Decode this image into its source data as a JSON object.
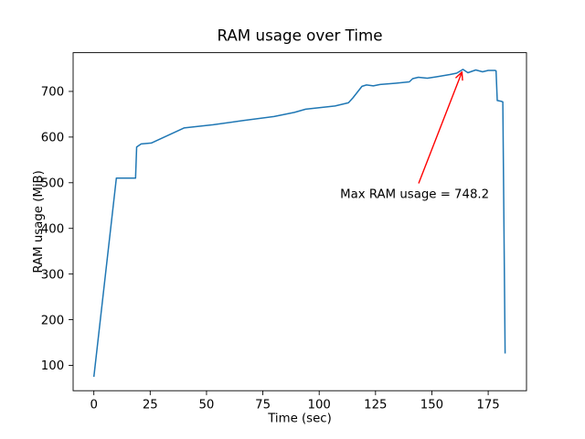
{
  "chart_data": {
    "type": "line",
    "title": "RAM usage over Time",
    "xlabel": "Time (sec)",
    "ylabel": "RAM usage (MiB)",
    "xlim": [
      -9.2,
      192.0
    ],
    "ylim": [
      44.5,
      784.8
    ],
    "xticks": [
      0,
      25,
      50,
      75,
      100,
      125,
      150,
      175
    ],
    "yticks": [
      100,
      200,
      300,
      400,
      500,
      600,
      700
    ],
    "grid": false,
    "legend": null,
    "line_color": "#1f77b4",
    "annotation_color": "#ff0000",
    "axis_color": "#000000",
    "series": [
      {
        "name": "RAM usage",
        "x": [
          0,
          10,
          18.5,
          19,
          21,
          25.5,
          40,
          53,
          66,
          80,
          89,
          94,
          107,
          113,
          115,
          119,
          121,
          124,
          127,
          134,
          140,
          141.5,
          144,
          148,
          152,
          158,
          161,
          163.8,
          166,
          169.5,
          172.5,
          175,
          178,
          178.5,
          179,
          181,
          181.5,
          182.5
        ],
        "y": [
          75,
          510,
          510,
          578,
          585,
          587,
          620,
          627,
          636,
          645,
          654,
          661,
          668,
          675,
          686,
          711,
          714,
          712,
          715,
          718,
          721,
          728,
          731,
          729,
          732,
          737,
          740,
          748.2,
          741,
          747,
          743,
          746,
          746,
          745,
          680,
          678,
          677,
          126
        ]
      }
    ],
    "annotation": {
      "label": "Max RAM usage = 748.2",
      "max_value": 748.2,
      "arrow_tip_xy": [
        163.8,
        748.2
      ],
      "text_xy": [
        109.3,
        467
      ]
    }
  }
}
